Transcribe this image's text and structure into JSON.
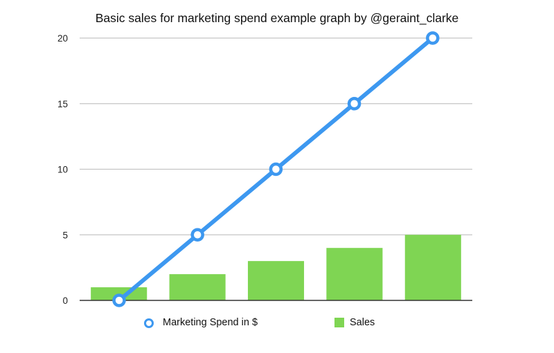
{
  "chart_data": {
    "type": "bar",
    "title": "Basic sales for marketing spend example graph by @geraint_clarke",
    "xlabel": "",
    "ylabel": "",
    "ylim": [
      0,
      20
    ],
    "yticks": [
      0,
      5,
      10,
      15,
      20
    ],
    "grid": true,
    "legend_position": "bottom",
    "categories": [
      "",
      "",
      "",
      "",
      ""
    ],
    "series": [
      {
        "name": "Marketing Spend in $",
        "type": "line",
        "color": "#3d98f0",
        "values": [
          0,
          5,
          10,
          15,
          20
        ]
      },
      {
        "name": "Sales",
        "type": "bar",
        "color": "#7fd553",
        "values": [
          1,
          2,
          3,
          4,
          5
        ]
      }
    ]
  },
  "legend": {
    "line_label": "Marketing Spend in $",
    "bar_label": "Sales"
  }
}
